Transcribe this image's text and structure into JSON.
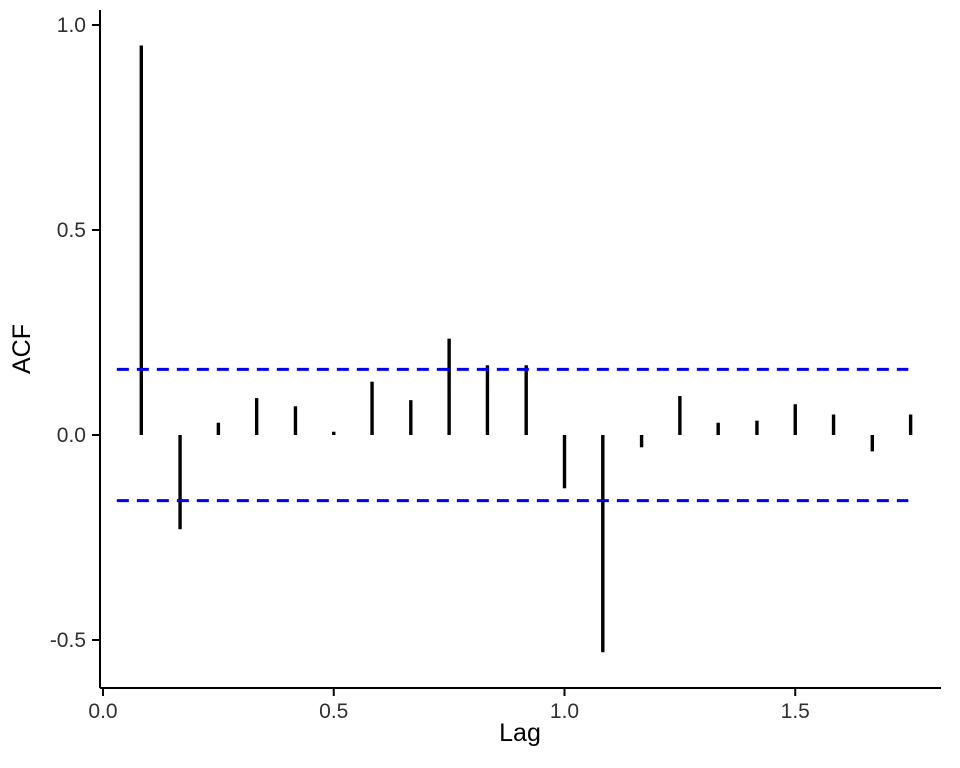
{
  "chart_data": {
    "type": "bar",
    "subtype": "acf-correlogram",
    "title": "",
    "xlabel": "Lag",
    "ylabel": "ACF",
    "x": [
      0.083,
      0.167,
      0.25,
      0.333,
      0.417,
      0.5,
      0.583,
      0.667,
      0.75,
      0.833,
      0.917,
      1.0,
      1.083,
      1.167,
      1.25,
      1.333,
      1.417,
      1.5,
      1.583,
      1.667,
      1.75
    ],
    "values": [
      0.95,
      -0.23,
      0.03,
      0.09,
      0.07,
      0.008,
      0.13,
      0.085,
      0.235,
      0.17,
      0.17,
      -0.13,
      -0.53,
      -0.03,
      0.095,
      0.03,
      0.035,
      0.075,
      0.05,
      -0.04,
      0.05
    ],
    "conf_bounds": [
      0.16,
      -0.16
    ],
    "conf_span": [
      0.03,
      1.745
    ],
    "xlim": [
      0.0,
      1.815
    ],
    "ylim": [
      -0.62,
      1.02
    ],
    "x_ticks": {
      "values": [
        0.0,
        0.5,
        1.0,
        1.5
      ],
      "labels": [
        "0.0",
        "0.5",
        "1.0",
        "1.5"
      ]
    },
    "y_ticks": {
      "values": [
        1.0,
        0.5,
        0.0,
        -0.5
      ],
      "labels": [
        "1.0",
        "0.5",
        "0.0",
        "-0.5"
      ]
    },
    "grid": false,
    "legend": false,
    "colors": {
      "bar": "#000000",
      "confidence": "#0000f5",
      "axis": "#000000",
      "tick_text": "#303030"
    }
  }
}
